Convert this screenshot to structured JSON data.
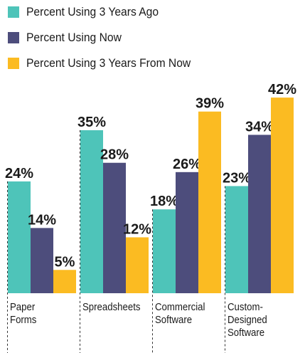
{
  "chart_data": {
    "type": "bar",
    "categories": [
      "Paper\nForms",
      "Spreadsheets",
      "Commercial\nSoftware",
      "Custom-\nDesigned\nSoftware"
    ],
    "series": [
      {
        "name": "Percent Using 3 Years Ago",
        "values": [
          24,
          35,
          18,
          23
        ],
        "labels": [
          "24%",
          "35%",
          "18%",
          "23%"
        ],
        "color": "#4ec4b9"
      },
      {
        "name": "Percent Using Now",
        "values": [
          14,
          28,
          26,
          34
        ],
        "labels": [
          "14%",
          "28%",
          "26%",
          "34%"
        ],
        "color": "#4d4d7c"
      },
      {
        "name": "Percent Using 3 Years From Now",
        "values": [
          5,
          12,
          39,
          42
        ],
        "labels": [
          "5%",
          "12%",
          "39%",
          "42%"
        ],
        "color": "#fbbb22"
      }
    ],
    "value_unit": "%",
    "ylim": [
      0,
      42
    ],
    "legend_position": "top-left",
    "category_separators": "dashed vertical lines",
    "grid": false
  }
}
